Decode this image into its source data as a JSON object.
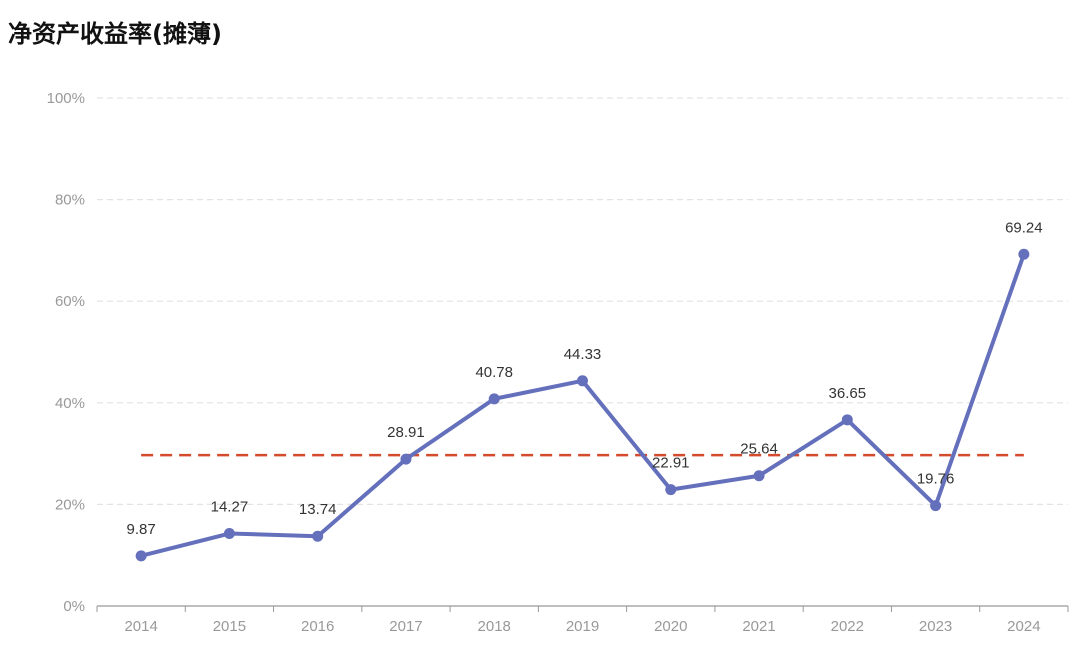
{
  "chart_data": {
    "type": "line",
    "title": "净资产收益率(摊薄)",
    "xlabel": "",
    "ylabel": "",
    "categories": [
      "2014",
      "2015",
      "2016",
      "2017",
      "2018",
      "2019",
      "2020",
      "2021",
      "2022",
      "2023",
      "2024"
    ],
    "series": [
      {
        "values": [
          9.87,
          14.27,
          13.74,
          28.91,
          40.78,
          44.33,
          22.91,
          25.64,
          36.65,
          19.76,
          69.24
        ]
      }
    ],
    "data_labels": [
      "9.87",
      "14.27",
      "13.74",
      "28.91",
      "40.78",
      "44.33",
      "22.91",
      "25.64",
      "36.65",
      "19.76",
      "69.24"
    ],
    "reference_line": {
      "value": 29.7,
      "style": "dashed"
    },
    "ylim": [
      0,
      100
    ],
    "yticks": [
      0,
      20,
      40,
      60,
      80,
      100
    ],
    "ytick_labels": [
      "0%",
      "20%",
      "40%",
      "60%",
      "80%",
      "100%"
    ],
    "grid": true,
    "legend": "none",
    "colors": {
      "line": "#6470bb",
      "reference": "#d44a2d",
      "grid": "#e3e3e3",
      "axis": "#999999",
      "text": "#333333"
    }
  }
}
